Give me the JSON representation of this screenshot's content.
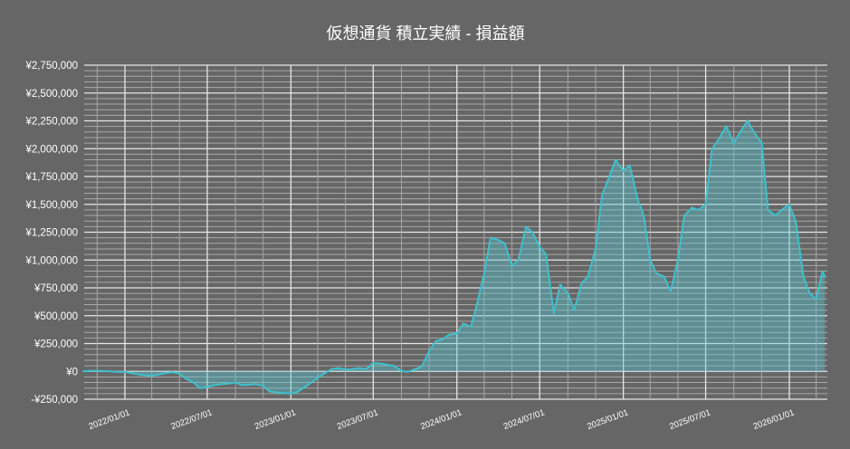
{
  "chart_data": {
    "type": "area",
    "title": "仮想通貨 積立実績  -  損益額",
    "xlabel": "",
    "ylabel": "",
    "ylim": [
      -250000,
      2750000
    ],
    "xlim": [
      "2021-10-01",
      "2026-03-20"
    ],
    "grid": true,
    "legend": "none",
    "colors": {
      "background": "#666666",
      "line": "#3ec0cc",
      "fill": "#56c8d2",
      "major_grid": "#e6e6e6",
      "minor_grid": "#a8a8a8",
      "text": "#ffffff"
    },
    "y_ticks": [
      -250000,
      0,
      250000,
      500000,
      750000,
      1000000,
      1250000,
      1500000,
      1750000,
      2000000,
      2250000,
      2500000,
      2750000
    ],
    "y_tick_labels": [
      "-¥250,000",
      "¥0",
      "¥250,000",
      "¥500,000",
      "¥750,000",
      "¥1,000,000",
      "¥1,250,000",
      "¥1,500,000",
      "¥1,750,000",
      "¥2,000,000",
      "¥2,250,000",
      "¥2,500,000",
      "¥2,750,000"
    ],
    "x_ticks": [
      "2022-01-01",
      "2022-07-01",
      "2023-01-01",
      "2023-07-01",
      "2024-01-01",
      "2024-07-01",
      "2025-01-01",
      "2025-07-01",
      "2026-01-01"
    ],
    "x_tick_labels": [
      "2022/01/01",
      "2022/07/01",
      "2023/01/01",
      "2023/07/01",
      "2024/01/01",
      "2024/07/01",
      "2025/01/01",
      "2025/07/01",
      "2026/01/01"
    ],
    "series": [
      {
        "x": [
          "2021-10-01",
          "2021-10-15",
          "2021-11-01",
          "2021-11-15",
          "2021-12-01",
          "2021-12-15",
          "2022-01-01",
          "2022-01-15",
          "2022-02-01",
          "2022-02-15",
          "2022-03-01",
          "2022-03-15",
          "2022-04-01",
          "2022-04-15",
          "2022-05-01",
          "2022-05-15",
          "2022-06-01",
          "2022-06-15",
          "2022-07-01",
          "2022-07-15",
          "2022-08-01",
          "2022-08-15",
          "2022-09-01",
          "2022-09-15",
          "2022-10-01",
          "2022-10-15",
          "2022-11-01",
          "2022-11-15",
          "2022-12-01",
          "2022-12-15",
          "2023-01-01",
          "2023-01-15",
          "2023-02-01",
          "2023-02-15",
          "2023-03-01",
          "2023-03-15",
          "2023-04-01",
          "2023-04-15",
          "2023-05-01",
          "2023-05-15",
          "2023-06-01",
          "2023-06-15",
          "2023-07-01",
          "2023-07-15",
          "2023-08-01",
          "2023-08-15",
          "2023-09-01",
          "2023-09-15",
          "2023-10-01",
          "2023-10-15",
          "2023-11-01",
          "2023-11-15",
          "2023-12-01",
          "2023-12-15",
          "2024-01-01",
          "2024-01-15",
          "2024-02-01",
          "2024-02-15",
          "2024-03-01",
          "2024-03-15",
          "2024-04-01",
          "2024-04-15",
          "2024-05-01",
          "2024-05-15",
          "2024-06-01",
          "2024-06-15",
          "2024-07-01",
          "2024-07-15",
          "2024-08-01",
          "2024-08-15",
          "2024-09-01",
          "2024-09-15",
          "2024-10-01",
          "2024-10-15",
          "2024-11-01",
          "2024-11-15",
          "2024-12-01",
          "2024-12-15",
          "2025-01-01",
          "2025-01-15",
          "2025-02-01",
          "2025-02-15",
          "2025-03-01",
          "2025-03-15",
          "2025-04-01",
          "2025-04-15",
          "2025-05-01",
          "2025-05-15",
          "2025-06-01",
          "2025-06-15",
          "2025-07-01",
          "2025-07-15",
          "2025-08-01",
          "2025-08-15",
          "2025-09-01",
          "2025-09-15",
          "2025-10-01",
          "2025-10-15",
          "2025-11-01",
          "2025-11-15",
          "2025-12-01",
          "2025-12-15",
          "2026-01-01",
          "2026-01-15",
          "2026-02-01",
          "2026-02-15",
          "2026-03-01",
          "2026-03-15",
          "2026-03-20"
        ],
        "values": [
          0,
          5000,
          5000,
          3000,
          0,
          -5000,
          -5000,
          -15000,
          -28000,
          -35000,
          -40000,
          -30000,
          -15000,
          -8000,
          -20000,
          -65000,
          -100000,
          -150000,
          -140000,
          -125000,
          -115000,
          -110000,
          -100000,
          -125000,
          -120000,
          -115000,
          -130000,
          -180000,
          -190000,
          -195000,
          -200000,
          -185000,
          -140000,
          -100000,
          -60000,
          -20000,
          20000,
          30000,
          15000,
          20000,
          30000,
          20000,
          75000,
          70000,
          60000,
          50000,
          5000,
          -5000,
          20000,
          40000,
          180000,
          270000,
          290000,
          330000,
          340000,
          430000,
          400000,
          620000,
          880000,
          1200000,
          1180000,
          1150000,
          950000,
          1000000,
          1300000,
          1250000,
          1120000,
          1050000,
          520000,
          780000,
          700000,
          550000,
          790000,
          850000,
          1100000,
          1580000,
          1750000,
          1900000,
          1800000,
          1850000,
          1550000,
          1400000,
          1000000,
          880000,
          850000,
          720000,
          1000000,
          1400000,
          1470000,
          1450000,
          1500000,
          2000000,
          2100000,
          2200000,
          2050000,
          2150000,
          2250000,
          2150000,
          2050000,
          1450000,
          1400000,
          1450000,
          1500000,
          1350000,
          850000,
          700000,
          650000,
          900000,
          850000
        ]
      }
    ]
  }
}
